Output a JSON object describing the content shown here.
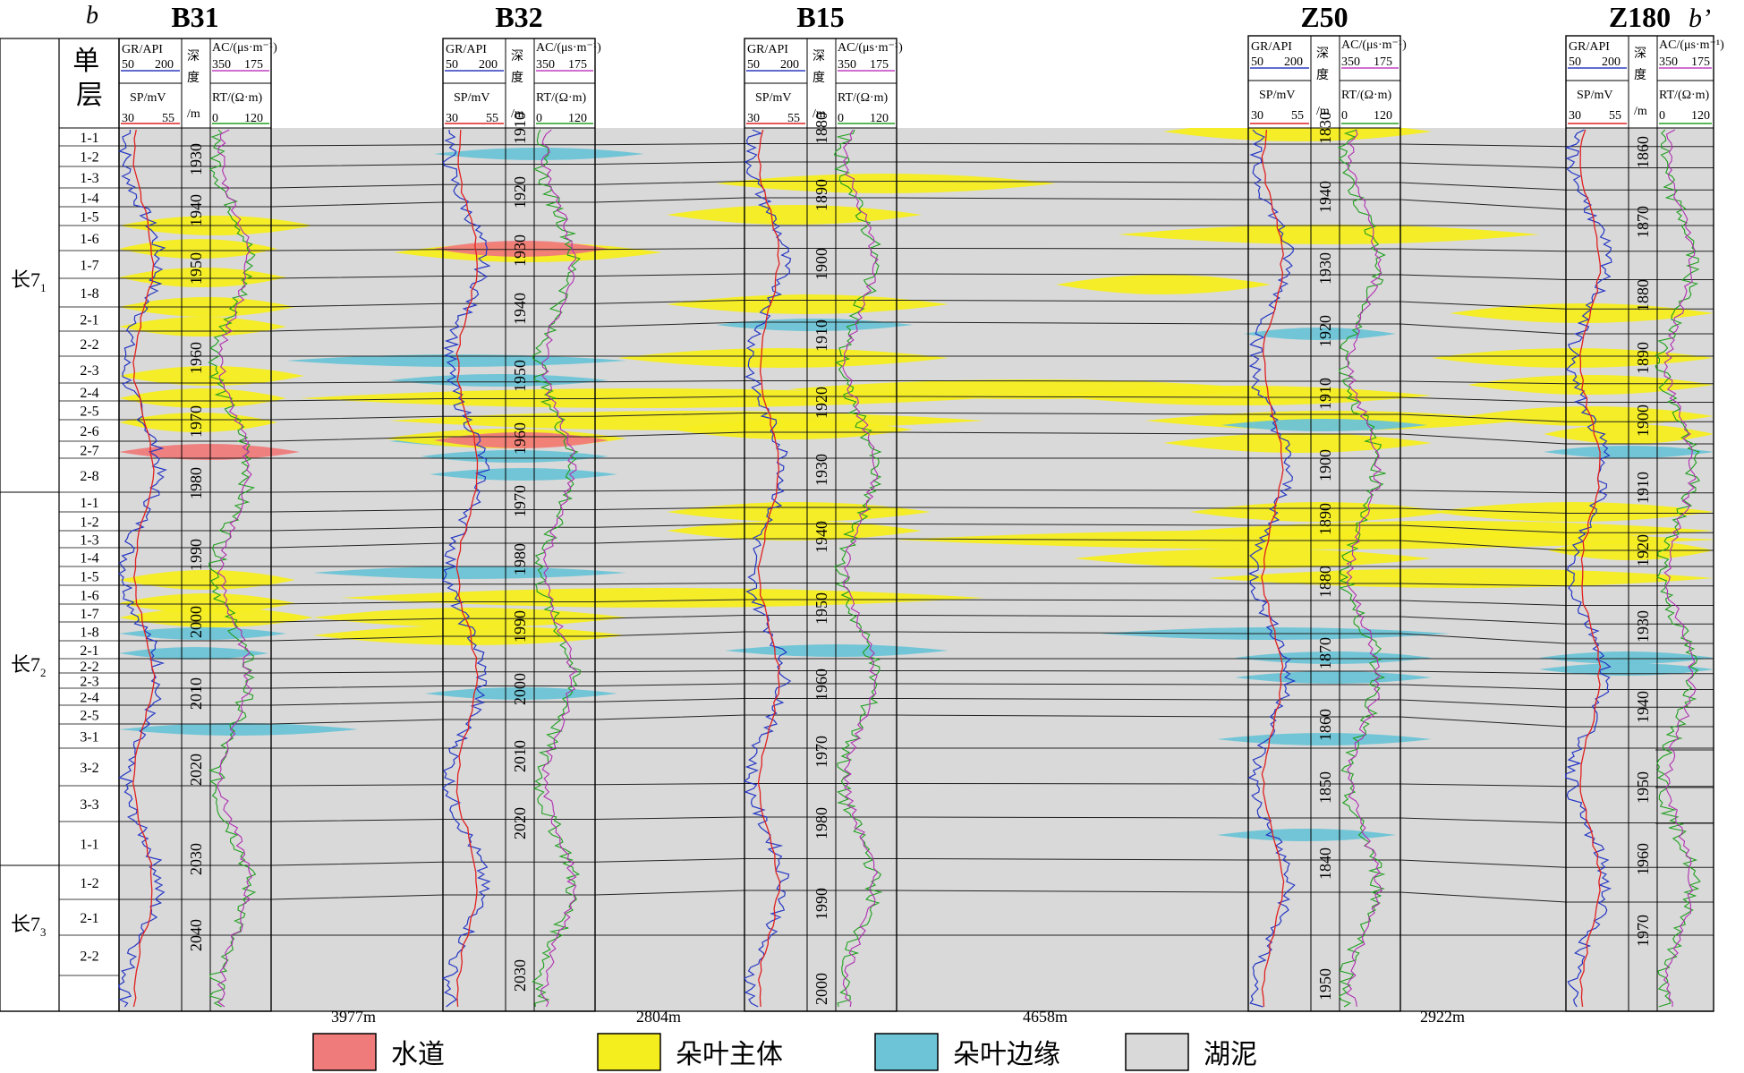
{
  "profile": {
    "start_label": "b",
    "end_label": "b’",
    "column_header": "单层"
  },
  "groups": [
    {
      "name": "长7",
      "sub": "1"
    },
    {
      "name": "长7",
      "sub": "2"
    },
    {
      "name": "长7",
      "sub": "3"
    }
  ],
  "layers": [
    "1-1",
    "1-2",
    "1-3",
    "1-4",
    "1-5",
    "1-6",
    "1-7",
    "1-8",
    "2-1",
    "2-2",
    "2-3",
    "2-4",
    "2-5",
    "2-6",
    "2-7",
    "2-8",
    "1-1",
    "1-2",
    "1-3",
    "1-4",
    "1-5",
    "1-6",
    "1-7",
    "1-8",
    "2-1",
    "2-2",
    "2-3",
    "2-4",
    "2-5",
    "3-1",
    "3-2",
    "3-3",
    "1-1",
    "1-2",
    "2-1",
    "2-2"
  ],
  "log_header": {
    "gr": "GR/API",
    "gr_scale": [
      "50",
      "200"
    ],
    "sp": "SP/mV",
    "sp_scale": [
      "30",
      "55"
    ],
    "depth": [
      "深",
      "度",
      "/m"
    ],
    "ac": "AC/(μs·m⁻¹)",
    "ac_scale": [
      "350",
      "175"
    ],
    "rt": "RT/(Ω·m)",
    "rt_scale": [
      "0",
      "120"
    ]
  },
  "wells": [
    {
      "name": "B31",
      "depths": [
        "1930",
        "1940",
        "1950",
        "1960",
        "1970",
        "1980",
        "1990",
        "2000",
        "2010",
        "2020",
        "2030",
        "2040"
      ]
    },
    {
      "name": "B32",
      "depths": [
        "1910",
        "1920",
        "1930",
        "1940",
        "1950",
        "1960",
        "1970",
        "1980",
        "1990",
        "2000",
        "2010",
        "2020",
        "2030"
      ]
    },
    {
      "name": "B15",
      "depths": [
        "1880",
        "1890",
        "1900",
        "1910",
        "1920",
        "1930",
        "1940",
        "1950",
        "1960",
        "1970",
        "1980",
        "1990",
        "2000"
      ]
    },
    {
      "name": "Z50",
      "depths": [
        "1830",
        "1940",
        "1930",
        "1920",
        "1910",
        "1900",
        "1890",
        "1880",
        "1870",
        "1860",
        "1850",
        "1840",
        "1950"
      ]
    },
    {
      "name": "Z180",
      "depths": [
        "1860",
        "1870",
        "1880",
        "1890",
        "1900",
        "1910",
        "1920",
        "1930",
        "1940",
        "1950",
        "1960",
        "1970"
      ]
    }
  ],
  "distances": [
    "3977m",
    "2804m",
    "4658m",
    "2922m"
  ],
  "legend": [
    {
      "label": "水道",
      "color": "#f07b7b"
    },
    {
      "label": "朵叶主体",
      "color": "#f5ee1e"
    },
    {
      "label": "朵叶边缘",
      "color": "#6cc4d6"
    },
    {
      "label": "湖泥",
      "color": "#d9d9d9"
    }
  ]
}
